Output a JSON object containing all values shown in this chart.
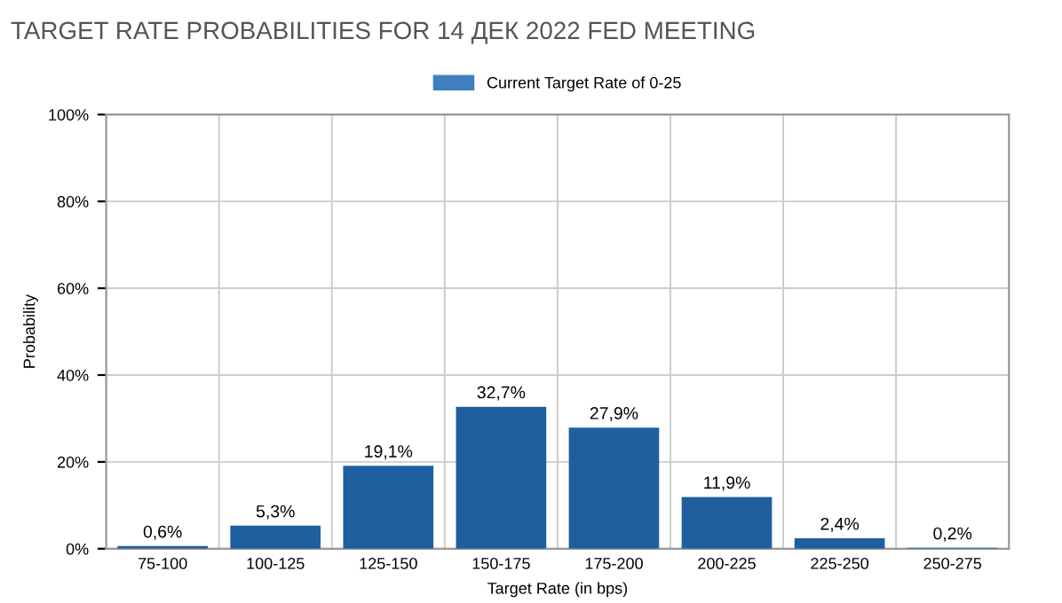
{
  "chart_data": {
    "type": "bar",
    "title": "TARGET RATE PROBABILITIES FOR 14 ДЕК 2022 FED MEETING",
    "xlabel": "Target Rate (in bps)",
    "ylabel": "Probability",
    "categories": [
      "75-100",
      "100-125",
      "125-150",
      "150-175",
      "175-200",
      "200-225",
      "225-250",
      "250-275"
    ],
    "series": [
      {
        "color": "#1f5fa0",
        "values": [
          0.6,
          5.3,
          19.1,
          32.7,
          27.9,
          11.9,
          2.4,
          0.2
        ],
        "value_labels": [
          "0,6%",
          "5,3%",
          "19,1%",
          "32,7%",
          "27,9%",
          "11,9%",
          "2,4%",
          "0,2%"
        ]
      },
      {
        "name": "Current Target Rate of 0-25",
        "color": "#3f7fc0",
        "values": [
          null,
          null,
          null,
          null,
          null,
          null,
          null,
          null
        ]
      }
    ],
    "ylim": [
      0,
      100
    ],
    "yticks": [
      {
        "value": 0,
        "label": "0%"
      },
      {
        "value": 20,
        "label": "20%"
      },
      {
        "value": 40,
        "label": "40%"
      },
      {
        "value": 60,
        "label": "60%"
      },
      {
        "value": 80,
        "label": "80%"
      },
      {
        "value": 100,
        "label": "100%"
      }
    ],
    "grid": true,
    "legend": "top"
  }
}
